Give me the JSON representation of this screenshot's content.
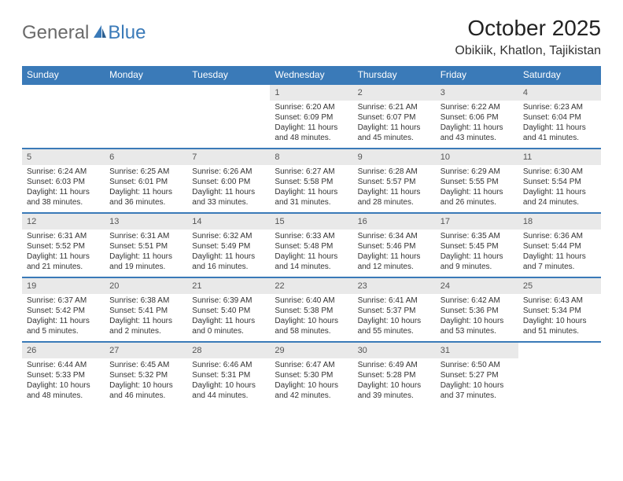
{
  "brand": {
    "part1": "General",
    "part2": "Blue"
  },
  "title": "October 2025",
  "location": "Obikiik, Khatlon, Tajikistan",
  "colors": {
    "header_bg": "#3a7ab8",
    "header_text": "#ffffff",
    "daynum_bg": "#e9e9e9",
    "border_top": "#3a7ab8",
    "logo_gray": "#6a6a6a",
    "logo_blue": "#3a7ab8",
    "page_bg": "#ffffff",
    "text": "#333333"
  },
  "weekdays": [
    "Sunday",
    "Monday",
    "Tuesday",
    "Wednesday",
    "Thursday",
    "Friday",
    "Saturday"
  ],
  "weeks": [
    [
      {
        "day": "",
        "lines": [
          "",
          "",
          "",
          ""
        ],
        "empty": true
      },
      {
        "day": "",
        "lines": [
          "",
          "",
          "",
          ""
        ],
        "empty": true
      },
      {
        "day": "",
        "lines": [
          "",
          "",
          "",
          ""
        ],
        "empty": true
      },
      {
        "day": "1",
        "lines": [
          "Sunrise: 6:20 AM",
          "Sunset: 6:09 PM",
          "Daylight: 11 hours",
          "and 48 minutes."
        ]
      },
      {
        "day": "2",
        "lines": [
          "Sunrise: 6:21 AM",
          "Sunset: 6:07 PM",
          "Daylight: 11 hours",
          "and 45 minutes."
        ]
      },
      {
        "day": "3",
        "lines": [
          "Sunrise: 6:22 AM",
          "Sunset: 6:06 PM",
          "Daylight: 11 hours",
          "and 43 minutes."
        ]
      },
      {
        "day": "4",
        "lines": [
          "Sunrise: 6:23 AM",
          "Sunset: 6:04 PM",
          "Daylight: 11 hours",
          "and 41 minutes."
        ]
      }
    ],
    [
      {
        "day": "5",
        "lines": [
          "Sunrise: 6:24 AM",
          "Sunset: 6:03 PM",
          "Daylight: 11 hours",
          "and 38 minutes."
        ]
      },
      {
        "day": "6",
        "lines": [
          "Sunrise: 6:25 AM",
          "Sunset: 6:01 PM",
          "Daylight: 11 hours",
          "and 36 minutes."
        ]
      },
      {
        "day": "7",
        "lines": [
          "Sunrise: 6:26 AM",
          "Sunset: 6:00 PM",
          "Daylight: 11 hours",
          "and 33 minutes."
        ]
      },
      {
        "day": "8",
        "lines": [
          "Sunrise: 6:27 AM",
          "Sunset: 5:58 PM",
          "Daylight: 11 hours",
          "and 31 minutes."
        ]
      },
      {
        "day": "9",
        "lines": [
          "Sunrise: 6:28 AM",
          "Sunset: 5:57 PM",
          "Daylight: 11 hours",
          "and 28 minutes."
        ]
      },
      {
        "day": "10",
        "lines": [
          "Sunrise: 6:29 AM",
          "Sunset: 5:55 PM",
          "Daylight: 11 hours",
          "and 26 minutes."
        ]
      },
      {
        "day": "11",
        "lines": [
          "Sunrise: 6:30 AM",
          "Sunset: 5:54 PM",
          "Daylight: 11 hours",
          "and 24 minutes."
        ]
      }
    ],
    [
      {
        "day": "12",
        "lines": [
          "Sunrise: 6:31 AM",
          "Sunset: 5:52 PM",
          "Daylight: 11 hours",
          "and 21 minutes."
        ]
      },
      {
        "day": "13",
        "lines": [
          "Sunrise: 6:31 AM",
          "Sunset: 5:51 PM",
          "Daylight: 11 hours",
          "and 19 minutes."
        ]
      },
      {
        "day": "14",
        "lines": [
          "Sunrise: 6:32 AM",
          "Sunset: 5:49 PM",
          "Daylight: 11 hours",
          "and 16 minutes."
        ]
      },
      {
        "day": "15",
        "lines": [
          "Sunrise: 6:33 AM",
          "Sunset: 5:48 PM",
          "Daylight: 11 hours",
          "and 14 minutes."
        ]
      },
      {
        "day": "16",
        "lines": [
          "Sunrise: 6:34 AM",
          "Sunset: 5:46 PM",
          "Daylight: 11 hours",
          "and 12 minutes."
        ]
      },
      {
        "day": "17",
        "lines": [
          "Sunrise: 6:35 AM",
          "Sunset: 5:45 PM",
          "Daylight: 11 hours",
          "and 9 minutes."
        ]
      },
      {
        "day": "18",
        "lines": [
          "Sunrise: 6:36 AM",
          "Sunset: 5:44 PM",
          "Daylight: 11 hours",
          "and 7 minutes."
        ]
      }
    ],
    [
      {
        "day": "19",
        "lines": [
          "Sunrise: 6:37 AM",
          "Sunset: 5:42 PM",
          "Daylight: 11 hours",
          "and 5 minutes."
        ]
      },
      {
        "day": "20",
        "lines": [
          "Sunrise: 6:38 AM",
          "Sunset: 5:41 PM",
          "Daylight: 11 hours",
          "and 2 minutes."
        ]
      },
      {
        "day": "21",
        "lines": [
          "Sunrise: 6:39 AM",
          "Sunset: 5:40 PM",
          "Daylight: 11 hours",
          "and 0 minutes."
        ]
      },
      {
        "day": "22",
        "lines": [
          "Sunrise: 6:40 AM",
          "Sunset: 5:38 PM",
          "Daylight: 10 hours",
          "and 58 minutes."
        ]
      },
      {
        "day": "23",
        "lines": [
          "Sunrise: 6:41 AM",
          "Sunset: 5:37 PM",
          "Daylight: 10 hours",
          "and 55 minutes."
        ]
      },
      {
        "day": "24",
        "lines": [
          "Sunrise: 6:42 AM",
          "Sunset: 5:36 PM",
          "Daylight: 10 hours",
          "and 53 minutes."
        ]
      },
      {
        "day": "25",
        "lines": [
          "Sunrise: 6:43 AM",
          "Sunset: 5:34 PM",
          "Daylight: 10 hours",
          "and 51 minutes."
        ]
      }
    ],
    [
      {
        "day": "26",
        "lines": [
          "Sunrise: 6:44 AM",
          "Sunset: 5:33 PM",
          "Daylight: 10 hours",
          "and 48 minutes."
        ]
      },
      {
        "day": "27",
        "lines": [
          "Sunrise: 6:45 AM",
          "Sunset: 5:32 PM",
          "Daylight: 10 hours",
          "and 46 minutes."
        ]
      },
      {
        "day": "28",
        "lines": [
          "Sunrise: 6:46 AM",
          "Sunset: 5:31 PM",
          "Daylight: 10 hours",
          "and 44 minutes."
        ]
      },
      {
        "day": "29",
        "lines": [
          "Sunrise: 6:47 AM",
          "Sunset: 5:30 PM",
          "Daylight: 10 hours",
          "and 42 minutes."
        ]
      },
      {
        "day": "30",
        "lines": [
          "Sunrise: 6:49 AM",
          "Sunset: 5:28 PM",
          "Daylight: 10 hours",
          "and 39 minutes."
        ]
      },
      {
        "day": "31",
        "lines": [
          "Sunrise: 6:50 AM",
          "Sunset: 5:27 PM",
          "Daylight: 10 hours",
          "and 37 minutes."
        ]
      },
      {
        "day": "",
        "lines": [
          "",
          "",
          "",
          ""
        ],
        "empty": true
      }
    ]
  ]
}
